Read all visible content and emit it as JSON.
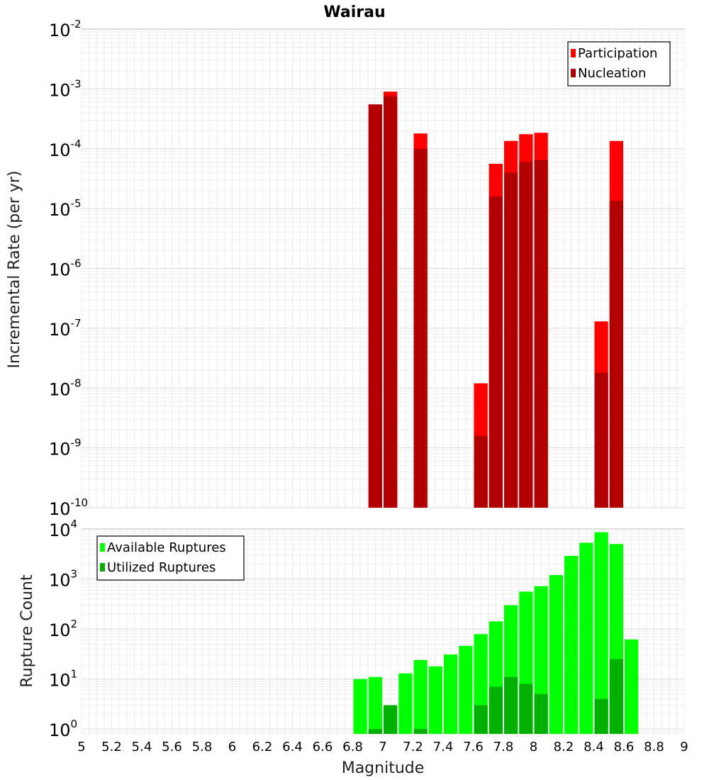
{
  "chart_data": [
    {
      "type": "bar",
      "title": "Wairau",
      "ylabel": "Incremental Rate (per yr)",
      "yscale": "log",
      "ylim": [
        1e-10,
        0.01
      ],
      "xlim": [
        5,
        9
      ],
      "ytick_exponents": [
        "-2",
        "-3",
        "-4",
        "-5",
        "-6",
        "-7",
        "-8",
        "-9",
        "-10"
      ],
      "ytick_base": "10",
      "grid": true,
      "legend_placement": "top-right",
      "series": [
        {
          "name": "Participation",
          "color": "#ff0000",
          "x": [
            6.95,
            7.05,
            7.25,
            7.65,
            7.75,
            7.85,
            7.95,
            8.05,
            8.45,
            8.55
          ],
          "values": [
            0.00055,
            0.0009,
            0.00018,
            1.2e-08,
            5.6e-05,
            0.000135,
            0.000175,
            0.000185,
            1.3e-07,
            0.000135
          ]
        },
        {
          "name": "Nucleation",
          "color": "#b20000",
          "x": [
            6.95,
            7.05,
            7.25,
            7.65,
            7.75,
            7.85,
            7.95,
            8.05,
            8.45,
            8.55
          ],
          "values": [
            0.00055,
            0.00075,
            0.0001,
            1.6e-09,
            1.6e-05,
            4e-05,
            6e-05,
            6.5e-05,
            1.8e-08,
            1.35e-05
          ]
        }
      ]
    },
    {
      "type": "bar",
      "xlabel": "Magnitude",
      "ylabel": "Rupture Count",
      "yscale": "log",
      "ylim": [
        0.8,
        10000
      ],
      "xlim": [
        5,
        9
      ],
      "x_ticks": [
        "5",
        "5.2",
        "5.4",
        "5.6",
        "5.8",
        "6",
        "6.2",
        "6.4",
        "6.6",
        "6.8",
        "7",
        "7.2",
        "7.4",
        "7.6",
        "7.8",
        "8",
        "8.2",
        "8.4",
        "8.6",
        "8.8",
        "9"
      ],
      "ytick_exponents": [
        "4",
        "3",
        "2",
        "1",
        "0"
      ],
      "ytick_base": "10",
      "grid": true,
      "legend_placement": "top-left",
      "series": [
        {
          "name": "Available Ruptures",
          "color": "#00ff00",
          "x": [
            6.85,
            6.95,
            7.05,
            7.15,
            7.25,
            7.35,
            7.45,
            7.55,
            7.65,
            7.75,
            7.85,
            7.95,
            8.05,
            8.15,
            8.25,
            8.35,
            8.45,
            8.55,
            8.65
          ],
          "values": [
            10,
            11,
            3,
            13,
            24,
            18,
            31,
            46,
            79,
            142,
            300,
            560,
            720,
            1200,
            2900,
            5300,
            8600,
            5000,
            62
          ]
        },
        {
          "name": "Utilized Ruptures",
          "color": "#00b000",
          "x": [
            6.95,
            7.05,
            7.25,
            7.65,
            7.75,
            7.85,
            7.95,
            8.05,
            8.45,
            8.55
          ],
          "values": [
            1,
            3,
            1,
            3,
            7,
            11,
            8,
            5,
            4,
            25
          ]
        }
      ]
    }
  ]
}
